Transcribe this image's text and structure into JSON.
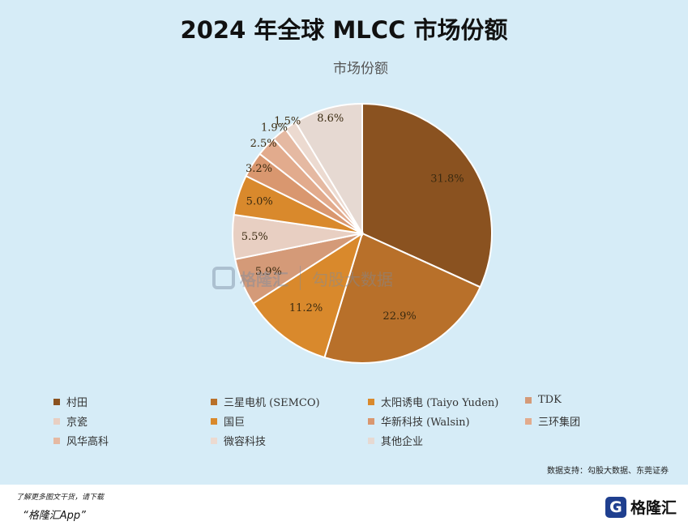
{
  "title": "2024 年全球 MLCC 市场份额",
  "watermark": {
    "brand": "格隆汇",
    "data": "勾股大数据"
  },
  "source": "数据支持：勾股大数据、东莞证券",
  "footer": {
    "line1": "了解更多图文干货，请下载",
    "line2": "“格隆汇App”",
    "logo_text": "格隆汇",
    "logo_icon": "G"
  },
  "chart_data": {
    "type": "pie",
    "title": "市场份额",
    "labels": [
      "村田",
      "三星电机 (SEMCO)",
      "太阳诱电 (Taiyo Yuden)",
      "TDK",
      "京瓷",
      "国巨",
      "华新科技 (Walsin)",
      "三环集团",
      "风华高科",
      "微容科技",
      "其他企业"
    ],
    "values": [
      31.8,
      22.9,
      11.2,
      5.9,
      5.5,
      5.0,
      3.2,
      2.5,
      1.9,
      1.5,
      8.6
    ],
    "value_labels": [
      "31.8%",
      "22.9%",
      "11.2%",
      "5.9%",
      "5.5%",
      "5.0%",
      "3.2%",
      "2.5%",
      "1.9%",
      "1.5%",
      "8.6%"
    ],
    "colors": [
      "#8a5220",
      "#b8702a",
      "#d9892c",
      "#d49a78",
      "#e8cfc2",
      "#d9892c",
      "#d9976f",
      "#e2ab8d",
      "#e5b9a2",
      "#ecdad0",
      "#e6d9d2"
    ],
    "start_angle_deg": 0,
    "direction": "clockwise",
    "legend_position": "bottom"
  }
}
